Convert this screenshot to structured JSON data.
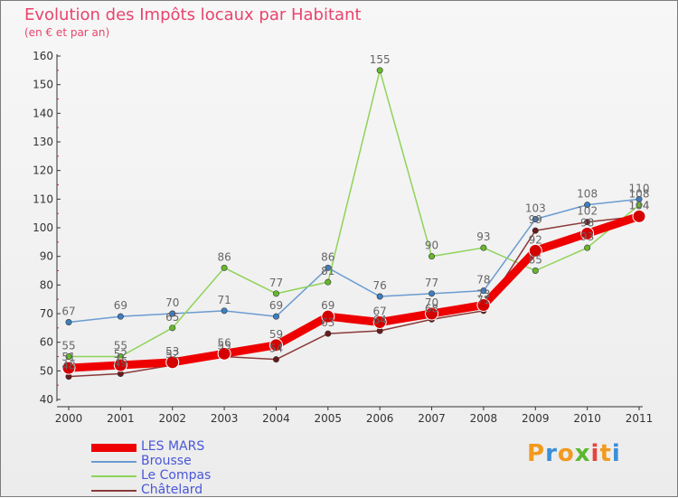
{
  "title": "Evolution des Impôts locaux par Habitant",
  "subtitle": "(en € et par an)",
  "logo": {
    "letters": [
      "P",
      "r",
      "o",
      "x",
      "i",
      "t",
      "i"
    ],
    "colors": [
      "#f29a1e",
      "#3a8fd8",
      "#f29a1e",
      "#5cb82e",
      "#e8443c",
      "#f29a1e",
      "#3a8fd8"
    ]
  },
  "chart_data": {
    "type": "line",
    "title": "Evolution des Impôts locaux par Habitant",
    "subtitle": "(en € et par an)",
    "x": [
      "2000",
      "2001",
      "2002",
      "2003",
      "2004",
      "2005",
      "2006",
      "2007",
      "2008",
      "2009",
      "2010",
      "2011"
    ],
    "ylim": [
      40,
      160
    ],
    "yticks": [
      40,
      50,
      60,
      70,
      80,
      90,
      100,
      110,
      120,
      130,
      140,
      150,
      160
    ],
    "grid": false,
    "legend_position": "bottom-left",
    "series": [
      {
        "name": "Brousse",
        "color": "#6b9bd1",
        "marker": "#3d7fc1",
        "width": 1.5,
        "values": [
          67,
          69,
          70,
          71,
          69,
          86,
          76,
          77,
          78,
          103,
          108,
          110
        ],
        "labels": [
          "67",
          "69",
          "70",
          "71",
          "69",
          "86",
          "76",
          "77",
          "78",
          "103",
          "108",
          "110"
        ]
      },
      {
        "name": "Le Compas",
        "color": "#8fd35a",
        "marker": "#66b82e",
        "width": 1.5,
        "values": [
          55,
          55,
          65,
          86,
          77,
          81,
          155,
          90,
          93,
          85,
          93,
          108
        ],
        "labels": [
          "55",
          "55",
          "65",
          "86",
          "77",
          "81",
          "155",
          "90",
          "93",
          "85",
          "93",
          "108"
        ]
      },
      {
        "name": "Châtelard",
        "color": "#8b3a3a",
        "marker": "#6a1a1a",
        "width": 1.5,
        "values": [
          48,
          49,
          52,
          55,
          54,
          63,
          64,
          68,
          71,
          99,
          102,
          104
        ],
        "labels": [
          "48",
          "49",
          "52",
          "55",
          "54",
          "63",
          "64",
          "68",
          "71",
          "99",
          "102",
          "104"
        ]
      },
      {
        "name": "LES MARS",
        "color": "#ee0000",
        "marker": "#d40000",
        "width": 9,
        "values": [
          51,
          52,
          53,
          56,
          59,
          69,
          67,
          70,
          73,
          92,
          98,
          104
        ],
        "labels": [
          "51",
          "52",
          "53",
          "56",
          "59",
          "69",
          "67",
          "70",
          "73",
          "92",
          "98",
          "104"
        ]
      }
    ],
    "legend_order": [
      "LES MARS",
      "Brousse",
      "Le Compas",
      "Châtelard"
    ]
  }
}
